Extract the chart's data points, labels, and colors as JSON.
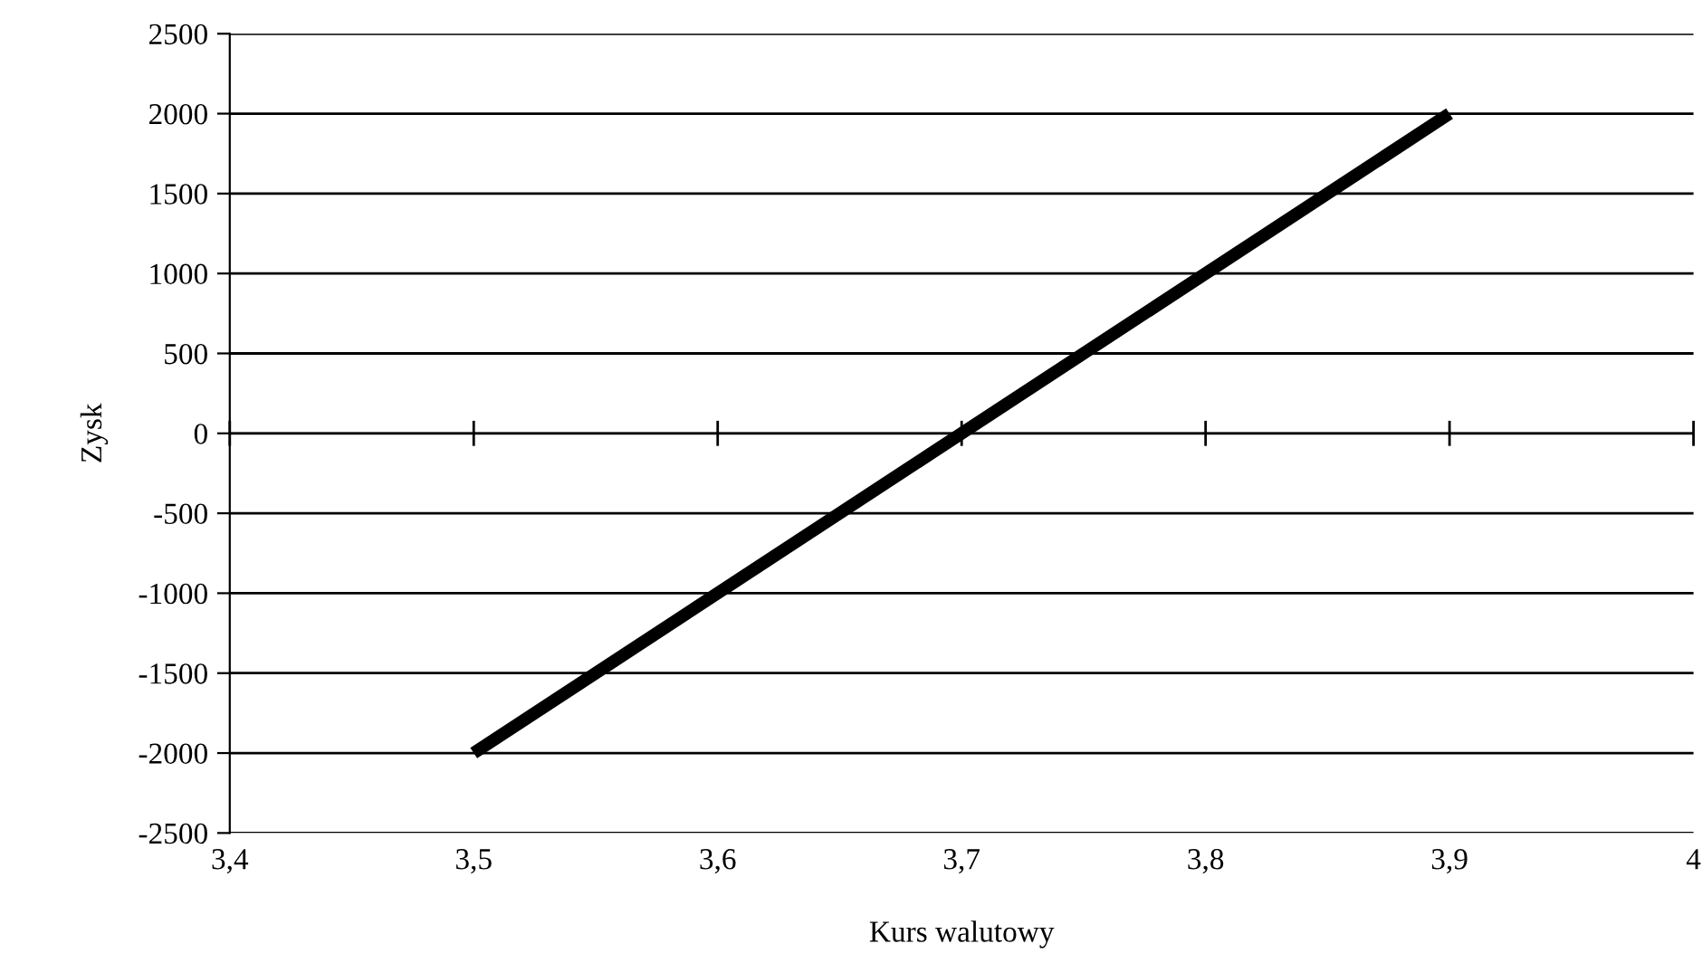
{
  "chart_data": {
    "type": "line",
    "xlabel": "Kurs walutowy",
    "ylabel": "Zysk",
    "x": [
      3.5,
      3.9
    ],
    "series": [
      {
        "color": "#000000",
        "values": [
          -2000,
          2000
        ]
      }
    ],
    "xlim": [
      3.4,
      4.0
    ],
    "xticks": [
      {
        "value": 3.4,
        "label": "3,4"
      },
      {
        "value": 3.5,
        "label": "3,5"
      },
      {
        "value": 3.6,
        "label": "3,6"
      },
      {
        "value": 3.7,
        "label": "3,7"
      },
      {
        "value": 3.8,
        "label": "3,8"
      },
      {
        "value": 3.9,
        "label": "3,9"
      },
      {
        "value": 4.0,
        "label": "4"
      }
    ],
    "ylim": [
      -2500,
      2500
    ],
    "yticks": [
      -2500,
      -2000,
      -1500,
      -1000,
      -500,
      0,
      500,
      1000,
      1500,
      2000,
      2500
    ],
    "grid": "y",
    "legend": false,
    "marker": "none",
    "line_style": "solid"
  }
}
